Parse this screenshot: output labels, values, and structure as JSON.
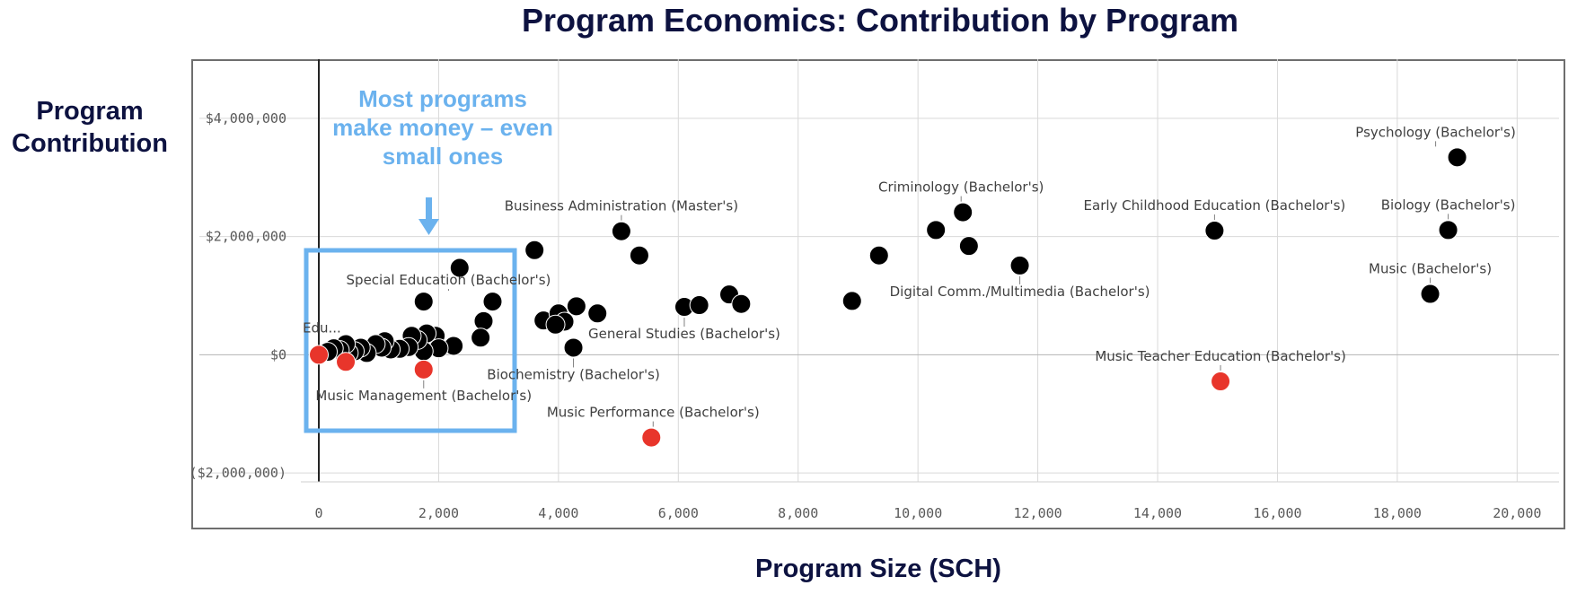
{
  "chart_data": {
    "type": "scatter",
    "title": "Program Economics: Contribution by Program",
    "xlabel": "Program Size (SCH)",
    "ylabel": "Program Contribution",
    "xlim": [
      -300,
      20700
    ],
    "ylim": [
      -2150000,
      5000000
    ],
    "x_ticks": [
      0,
      2000,
      4000,
      6000,
      8000,
      10000,
      12000,
      14000,
      16000,
      18000,
      20000
    ],
    "x_tick_labels": [
      "0",
      "2,000",
      "4,000",
      "6,000",
      "8,000",
      "10,000",
      "12,000",
      "14,000",
      "16,000",
      "18,000",
      "20,000"
    ],
    "y_ticks": [
      -2000000,
      0,
      2000000,
      4000000
    ],
    "y_tick_labels": [
      "($2,000,000)",
      "$0",
      "$2,000,000",
      "$4,000,000"
    ],
    "grid": true,
    "colors": {
      "positive": "#000000",
      "negative": "#e8352b",
      "callout": "#6bb2ee",
      "title": "#0d1240"
    },
    "callout": {
      "lines": [
        "Most programs",
        "make money – even",
        "small ones"
      ]
    },
    "series": [
      {
        "color": "#000000",
        "points": [
          {
            "x": 19000,
            "y": 3340000,
            "label": "Psychology (Bachelor's)"
          },
          {
            "x": 18850,
            "y": 2110000,
            "label": "Biology (Bachelor's)"
          },
          {
            "x": 18550,
            "y": 1030000,
            "label": "Music (Bachelor's)"
          },
          {
            "x": 14950,
            "y": 2100000,
            "label": "Early Childhood Education (Bachelor's)"
          },
          {
            "x": 10750,
            "y": 2410000,
            "label": "Criminology (Bachelor's)"
          },
          {
            "x": 11700,
            "y": 1510000,
            "label": "Digital Comm./Multimedia (Bachelor's)"
          },
          {
            "x": 5050,
            "y": 2090000,
            "label": "Business Administration (Master's)"
          },
          {
            "x": 2900,
            "y": 900000,
            "label": "Special Education (Bachelor's)"
          },
          {
            "x": 6100,
            "y": 810000,
            "label": "General Studies (Bachelor's)"
          },
          {
            "x": 4250,
            "y": 120000,
            "label": "Biochemistry (Bachelor's)"
          },
          {
            "x": 10300,
            "y": 2110000
          },
          {
            "x": 10850,
            "y": 1840000
          },
          {
            "x": 9350,
            "y": 1680000
          },
          {
            "x": 8900,
            "y": 910000
          },
          {
            "x": 6850,
            "y": 1020000
          },
          {
            "x": 7050,
            "y": 860000
          },
          {
            "x": 6350,
            "y": 840000
          },
          {
            "x": 5350,
            "y": 1680000
          },
          {
            "x": 3600,
            "y": 1770000
          },
          {
            "x": 2350,
            "y": 1470000
          },
          {
            "x": 1750,
            "y": 900000
          },
          {
            "x": 2750,
            "y": 570000
          },
          {
            "x": 2700,
            "y": 290000
          },
          {
            "x": 3750,
            "y": 580000
          },
          {
            "x": 4000,
            "y": 700000
          },
          {
            "x": 4100,
            "y": 560000
          },
          {
            "x": 3950,
            "y": 510000
          },
          {
            "x": 4300,
            "y": 820000
          },
          {
            "x": 4650,
            "y": 700000
          },
          {
            "x": 2250,
            "y": 150000
          },
          {
            "x": 1950,
            "y": 320000
          },
          {
            "x": 2000,
            "y": 110000
          },
          {
            "x": 1800,
            "y": 360000
          },
          {
            "x": 1750,
            "y": 60000
          },
          {
            "x": 1650,
            "y": 250000
          },
          {
            "x": 1550,
            "y": 320000
          },
          {
            "x": 1500,
            "y": 130000
          },
          {
            "x": 1350,
            "y": 100000
          },
          {
            "x": 1200,
            "y": 90000
          },
          {
            "x": 1100,
            "y": 230000
          },
          {
            "x": 1050,
            "y": 120000
          },
          {
            "x": 950,
            "y": 180000
          },
          {
            "x": 800,
            "y": 30000
          },
          {
            "x": 700,
            "y": 120000
          },
          {
            "x": 600,
            "y": 60000
          },
          {
            "x": 500,
            "y": 30000
          },
          {
            "x": 450,
            "y": 180000
          },
          {
            "x": 350,
            "y": 80000
          },
          {
            "x": 250,
            "y": 110000
          },
          {
            "x": 150,
            "y": 50000
          }
        ]
      },
      {
        "color": "#e8352b",
        "points": [
          {
            "x": 15050,
            "y": -450000,
            "label": "Music Teacher Education (Bachelor's)"
          },
          {
            "x": 5550,
            "y": -1400000,
            "label": "Music Performance (Bachelor's)"
          },
          {
            "x": 1750,
            "y": -250000,
            "label": "Music Management (Bachelor's)"
          },
          {
            "x": 450,
            "y": -120000
          },
          {
            "x": 0,
            "y": 0,
            "label": "Edu..."
          }
        ]
      }
    ]
  }
}
